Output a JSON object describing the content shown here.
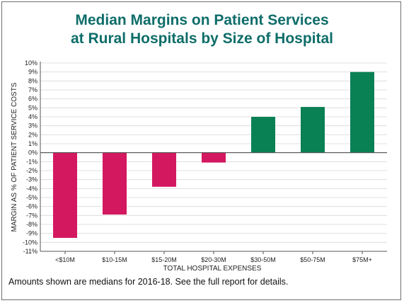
{
  "chart_data": {
    "type": "bar",
    "title_lines": [
      "Median Margins on Patient Services",
      "at Rural Hospitals by Size of Hospital"
    ],
    "xlabel": "TOTAL HOSPITAL EXPENSES",
    "ylabel": "MARGIN AS % OF PATIENT SERVICE COSTS",
    "categories": [
      "<$10M",
      "$10-15M",
      "$15-20M",
      "$20-30M",
      "$30-50M",
      "$50-75M",
      "$75M+"
    ],
    "values": [
      -9.5,
      -6.9,
      -3.8,
      -1.1,
      4.0,
      5.1,
      9.0
    ],
    "ylim": [
      -11,
      10
    ],
    "yticks": [
      10,
      9,
      8,
      7,
      6,
      5,
      4,
      3,
      2,
      1,
      0,
      -1,
      -2,
      -3,
      -4,
      -5,
      -6,
      -7,
      -8,
      -9,
      -10,
      -11
    ],
    "ytick_labels": [
      "10%",
      "9%",
      "8%",
      "7%",
      "6%",
      "5%",
      "4%",
      "3%",
      "2%",
      "1%",
      "0%",
      "-1%",
      "-2%",
      "-3%",
      "-4%",
      "-5%",
      "-6%",
      "-7%",
      "-8%",
      "-9%",
      "-10%",
      "-11%"
    ],
    "grid": true,
    "colors": {
      "negative": "#d41860",
      "positive": "#0a8055",
      "title": "#0e6d69",
      "grid": "#d9d9d9",
      "axis": "#555555"
    }
  },
  "footnote": "Amounts shown are medians for 2016-18.  See the full report for details."
}
